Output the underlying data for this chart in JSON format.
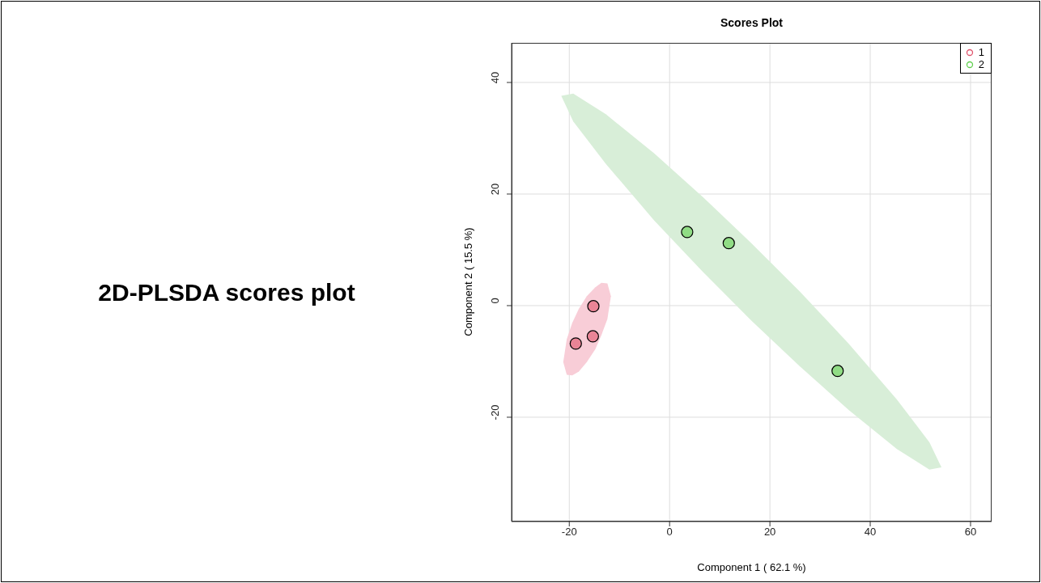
{
  "chart_data": {
    "type": "scatter",
    "title": "Scores Plot",
    "xlabel": "Component 1 ( 62.1 %)",
    "ylabel": "Component 2 ( 15.5 %)",
    "annotations": [
      "2D-PLSDA scores plot"
    ],
    "xlim": [
      -31.5,
      64.2
    ],
    "ylim": [
      -38.7,
      47.1
    ],
    "xticks": [
      -20,
      0,
      20,
      40,
      60
    ],
    "yticks": [
      -20,
      0,
      20,
      40
    ],
    "grid": true,
    "legend": "top right",
    "marker": "circle",
    "series": [
      {
        "type": "area",
        "marker": "none",
        "color": "#d8eed8",
        "x": [
          -21.6,
          -19.2,
          -12.7,
          -3.1,
          6.6,
          16.3,
          26.0,
          35.7,
          45.3,
          51.8,
          54.2,
          51.8,
          45.3,
          35.7,
          26.0,
          16.3,
          6.6,
          -3.1,
          -12.7,
          -19.2
        ],
        "values": [
          37.6,
          38.0,
          34.3,
          27.3,
          19.5,
          11.2,
          2.5,
          -6.8,
          -16.8,
          -24.5,
          -29.0,
          -29.4,
          -25.7,
          -18.7,
          -10.9,
          -2.7,
          6.1,
          15.3,
          25.4,
          33.0
        ]
      },
      {
        "type": "area",
        "marker": "none",
        "color": "#f8cdd7",
        "x": [
          -21.2,
          -20.5,
          -19.4,
          -18.1,
          -16.5,
          -14.8,
          -13.6,
          -12.4,
          -11.7,
          -12.4,
          -13.6,
          -14.8,
          -16.5,
          -18.1,
          -19.4,
          -20.5
        ],
        "values": [
          -10.1,
          -6.0,
          -3.1,
          -0.6,
          1.7,
          3.3,
          4.1,
          4.0,
          1.7,
          -2.4,
          -5.3,
          -7.8,
          -10.1,
          -11.8,
          -12.5,
          -12.4
        ]
      },
      {
        "name": "1",
        "color": "#df536b",
        "x": [
          -15.2,
          -15.3,
          -18.7
        ],
        "values": [
          -0.1,
          -5.5,
          -6.8
        ]
      },
      {
        "name": "2",
        "color": "#61d04f",
        "x": [
          3.5,
          11.8,
          33.5
        ],
        "values": [
          13.2,
          11.2,
          -11.7
        ]
      }
    ]
  }
}
